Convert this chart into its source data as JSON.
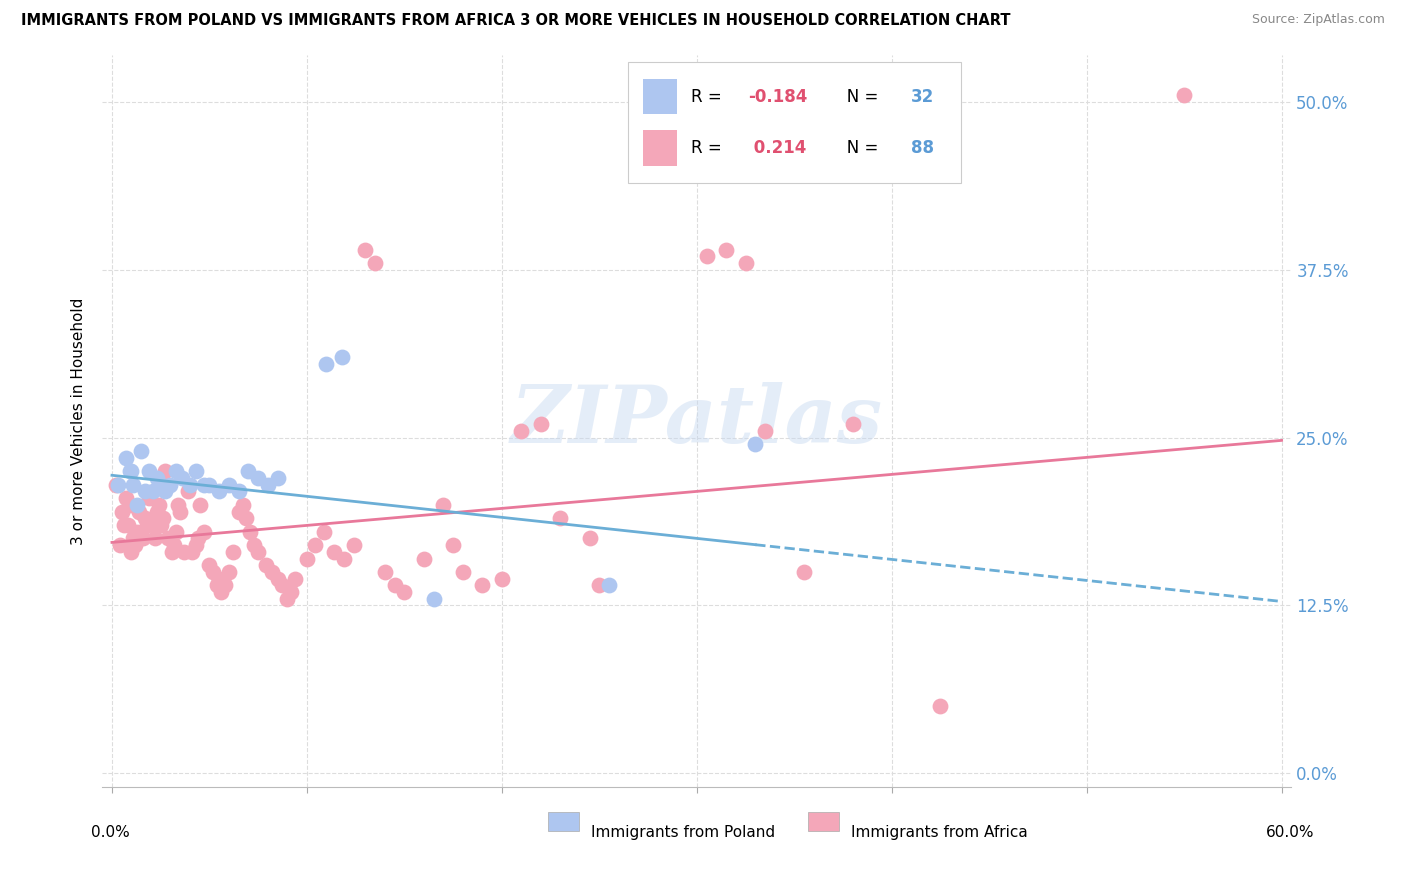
{
  "title": "IMMIGRANTS FROM POLAND VS IMMIGRANTS FROM AFRICA 3 OR MORE VEHICLES IN HOUSEHOLD CORRELATION CHART",
  "source": "Source: ZipAtlas.com",
  "xlabel_ticks_bottom": [
    "0.0%",
    "60.0%"
  ],
  "xlabel_vals_bottom": [
    0.0,
    0.6
  ],
  "ylabel": "3 or more Vehicles in Household",
  "ylabel_ticks": [
    "0.0%",
    "12.5%",
    "25.0%",
    "37.5%",
    "50.0%"
  ],
  "ylabel_vals": [
    0.0,
    0.125,
    0.25,
    0.375,
    0.5
  ],
  "xlim": [
    -0.005,
    0.605
  ],
  "ylim": [
    -0.01,
    0.535
  ],
  "poland_color": "#aec6f0",
  "africa_color": "#f4a7b9",
  "poland_line_color": "#6baed6",
  "africa_line_color": "#e8789a",
  "poland_R": -0.184,
  "poland_N": 32,
  "africa_R": 0.214,
  "africa_N": 88,
  "legend_label_poland": "Immigrants from Poland",
  "legend_label_africa": "Immigrants from Africa",
  "watermark": "ZIPatlas",
  "right_tick_color": "#5b9bd5",
  "poland_scatter": [
    [
      0.003,
      0.215
    ],
    [
      0.007,
      0.235
    ],
    [
      0.009,
      0.225
    ],
    [
      0.01,
      0.225
    ],
    [
      0.011,
      0.215
    ],
    [
      0.013,
      0.2
    ],
    [
      0.015,
      0.24
    ],
    [
      0.017,
      0.21
    ],
    [
      0.019,
      0.225
    ],
    [
      0.021,
      0.21
    ],
    [
      0.023,
      0.22
    ],
    [
      0.025,
      0.215
    ],
    [
      0.027,
      0.21
    ],
    [
      0.03,
      0.215
    ],
    [
      0.033,
      0.225
    ],
    [
      0.036,
      0.22
    ],
    [
      0.04,
      0.215
    ],
    [
      0.043,
      0.225
    ],
    [
      0.047,
      0.215
    ],
    [
      0.05,
      0.215
    ],
    [
      0.055,
      0.21
    ],
    [
      0.06,
      0.215
    ],
    [
      0.065,
      0.21
    ],
    [
      0.07,
      0.225
    ],
    [
      0.075,
      0.22
    ],
    [
      0.08,
      0.215
    ],
    [
      0.085,
      0.22
    ],
    [
      0.11,
      0.305
    ],
    [
      0.118,
      0.31
    ],
    [
      0.165,
      0.13
    ],
    [
      0.255,
      0.14
    ],
    [
      0.33,
      0.245
    ]
  ],
  "africa_scatter": [
    [
      0.002,
      0.215
    ],
    [
      0.004,
      0.17
    ],
    [
      0.005,
      0.195
    ],
    [
      0.006,
      0.185
    ],
    [
      0.007,
      0.205
    ],
    [
      0.008,
      0.185
    ],
    [
      0.009,
      0.2
    ],
    [
      0.01,
      0.165
    ],
    [
      0.011,
      0.175
    ],
    [
      0.012,
      0.17
    ],
    [
      0.013,
      0.18
    ],
    [
      0.014,
      0.195
    ],
    [
      0.015,
      0.175
    ],
    [
      0.016,
      0.175
    ],
    [
      0.017,
      0.19
    ],
    [
      0.018,
      0.185
    ],
    [
      0.019,
      0.205
    ],
    [
      0.021,
      0.185
    ],
    [
      0.022,
      0.175
    ],
    [
      0.023,
      0.195
    ],
    [
      0.024,
      0.2
    ],
    [
      0.025,
      0.185
    ],
    [
      0.026,
      0.19
    ],
    [
      0.027,
      0.225
    ],
    [
      0.029,
      0.175
    ],
    [
      0.031,
      0.165
    ],
    [
      0.032,
      0.17
    ],
    [
      0.033,
      0.18
    ],
    [
      0.034,
      0.2
    ],
    [
      0.035,
      0.195
    ],
    [
      0.037,
      0.165
    ],
    [
      0.039,
      0.21
    ],
    [
      0.041,
      0.165
    ],
    [
      0.043,
      0.17
    ],
    [
      0.044,
      0.175
    ],
    [
      0.045,
      0.2
    ],
    [
      0.047,
      0.18
    ],
    [
      0.05,
      0.155
    ],
    [
      0.052,
      0.15
    ],
    [
      0.054,
      0.14
    ],
    [
      0.055,
      0.145
    ],
    [
      0.056,
      0.135
    ],
    [
      0.058,
      0.14
    ],
    [
      0.06,
      0.15
    ],
    [
      0.062,
      0.165
    ],
    [
      0.065,
      0.195
    ],
    [
      0.067,
      0.2
    ],
    [
      0.069,
      0.19
    ],
    [
      0.071,
      0.18
    ],
    [
      0.073,
      0.17
    ],
    [
      0.075,
      0.165
    ],
    [
      0.079,
      0.155
    ],
    [
      0.082,
      0.15
    ],
    [
      0.085,
      0.145
    ],
    [
      0.087,
      0.14
    ],
    [
      0.09,
      0.13
    ],
    [
      0.092,
      0.135
    ],
    [
      0.094,
      0.145
    ],
    [
      0.1,
      0.16
    ],
    [
      0.104,
      0.17
    ],
    [
      0.109,
      0.18
    ],
    [
      0.114,
      0.165
    ],
    [
      0.119,
      0.16
    ],
    [
      0.124,
      0.17
    ],
    [
      0.13,
      0.39
    ],
    [
      0.135,
      0.38
    ],
    [
      0.14,
      0.15
    ],
    [
      0.145,
      0.14
    ],
    [
      0.15,
      0.135
    ],
    [
      0.16,
      0.16
    ],
    [
      0.17,
      0.2
    ],
    [
      0.175,
      0.17
    ],
    [
      0.18,
      0.15
    ],
    [
      0.19,
      0.14
    ],
    [
      0.2,
      0.145
    ],
    [
      0.21,
      0.255
    ],
    [
      0.22,
      0.26
    ],
    [
      0.23,
      0.19
    ],
    [
      0.245,
      0.175
    ],
    [
      0.25,
      0.14
    ],
    [
      0.305,
      0.385
    ],
    [
      0.315,
      0.39
    ],
    [
      0.325,
      0.38
    ],
    [
      0.335,
      0.255
    ],
    [
      0.355,
      0.15
    ],
    [
      0.38,
      0.26
    ],
    [
      0.425,
      0.05
    ],
    [
      0.55,
      0.505
    ]
  ],
  "poland_trend_solid_end": 0.33,
  "poland_trend_x0": 0.0,
  "poland_trend_y0": 0.222,
  "poland_trend_x1": 0.6,
  "poland_trend_y1": 0.128,
  "africa_trend_x0": 0.0,
  "africa_trend_y0": 0.172,
  "africa_trend_x1": 0.6,
  "africa_trend_y1": 0.248
}
